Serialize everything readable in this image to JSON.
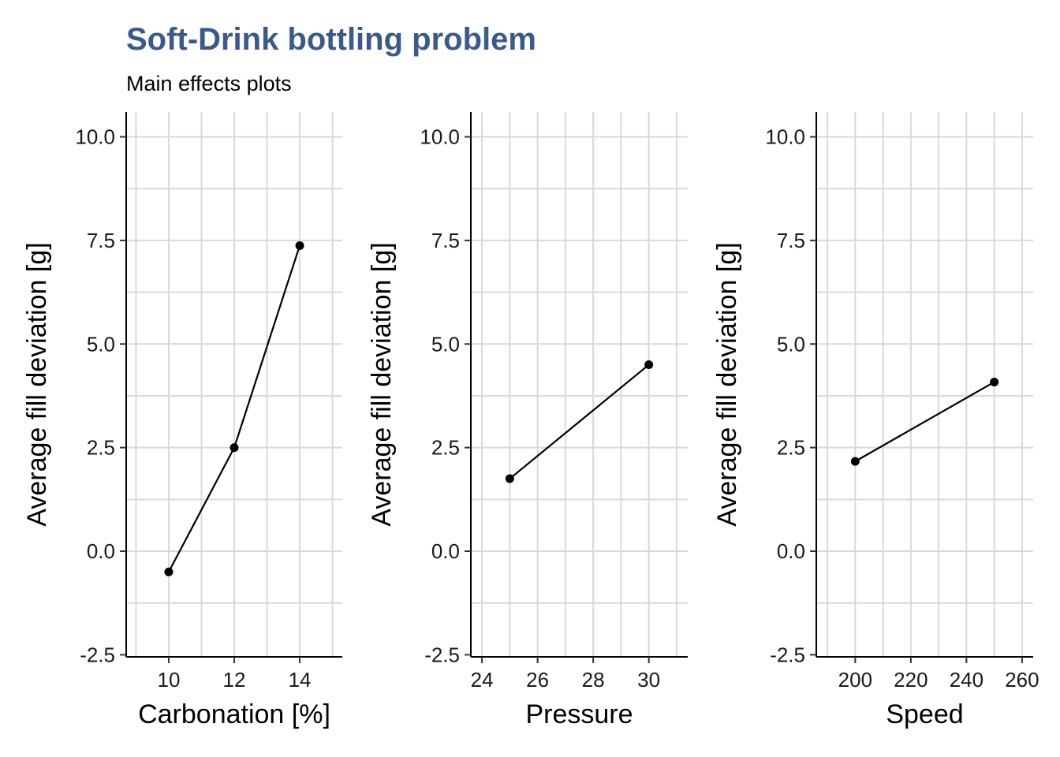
{
  "title": "Soft-Drink bottling problem",
  "subtitle": "Main effects plots",
  "chart_data": [
    {
      "type": "line",
      "xlabel": "Carbonation [%]",
      "ylabel": "Average fill deviation [g]",
      "x": [
        10,
        12,
        14
      ],
      "y": [
        -0.5,
        2.5,
        7.375
      ],
      "xticks": [
        10,
        12,
        14
      ],
      "xtick_labels": [
        "10",
        "12",
        "14"
      ],
      "xlim": [
        8.7,
        15.3
      ],
      "yticks": [
        -2.5,
        0,
        2.5,
        5,
        7.5,
        10
      ],
      "ytick_labels": [
        "-2.5",
        "0.0",
        "2.5",
        "5.0",
        "7.5",
        "10.0"
      ],
      "ylim": [
        -2.55,
        10.6
      ],
      "grid": true
    },
    {
      "type": "line",
      "xlabel": "Pressure",
      "ylabel": "Average fill deviation [g]",
      "x": [
        25,
        30
      ],
      "y": [
        1.75,
        4.5
      ],
      "xticks": [
        24,
        26,
        28,
        30
      ],
      "xtick_labels": [
        "24",
        "26",
        "28",
        "30"
      ],
      "xlim": [
        23.6,
        31.4
      ],
      "yticks": [
        -2.5,
        0,
        2.5,
        5,
        7.5,
        10
      ],
      "ytick_labels": [
        "-2.5",
        "0.0",
        "2.5",
        "5.0",
        "7.5",
        "10.0"
      ],
      "ylim": [
        -2.55,
        10.6
      ],
      "grid": true
    },
    {
      "type": "line",
      "xlabel": "Speed",
      "ylabel": "Average fill deviation [g]",
      "x": [
        200,
        250
      ],
      "y": [
        2.167,
        4.083
      ],
      "xticks": [
        200,
        220,
        240,
        260
      ],
      "xtick_labels": [
        "200",
        "220",
        "240",
        "260"
      ],
      "xlim": [
        186,
        264
      ],
      "yticks": [
        -2.5,
        0,
        2.5,
        5,
        7.5,
        10
      ],
      "ytick_labels": [
        "-2.5",
        "0.0",
        "2.5",
        "5.0",
        "7.5",
        "10.0"
      ],
      "ylim": [
        -2.55,
        10.6
      ],
      "grid": true
    }
  ]
}
